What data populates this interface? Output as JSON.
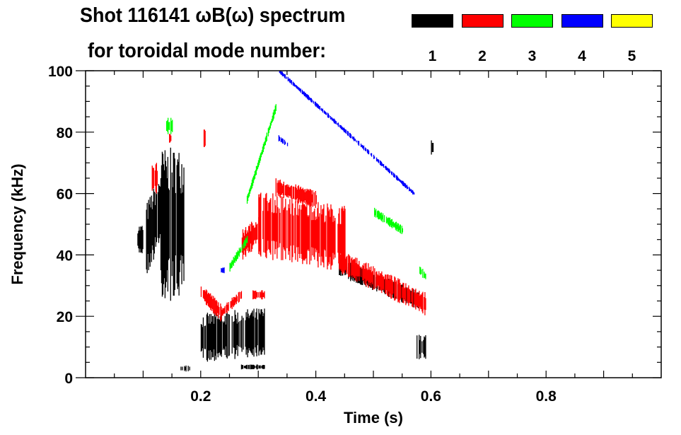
{
  "chart_data": {
    "type": "heatmap",
    "title_line1": "Shot 116141 ωB(ω) spectrum",
    "title_line2": "for toroidal mode number:",
    "xlabel": "Time (s)",
    "ylabel": "Frequency (kHz)",
    "xlim": [
      0,
      1.0
    ],
    "ylim": [
      0,
      100
    ],
    "xticks": [
      0.2,
      0.4,
      0.6,
      0.8
    ],
    "xtick_labels": [
      "0.2",
      "0.4",
      "0.6",
      "0.8"
    ],
    "yticks": [
      0,
      20,
      40,
      60,
      80,
      100
    ],
    "ytick_labels": [
      "0",
      "20",
      "40",
      "60",
      "80",
      "100"
    ],
    "legend": [
      {
        "mode": "1",
        "color": "#000000"
      },
      {
        "mode": "2",
        "color": "#ff0000"
      },
      {
        "mode": "3",
        "color": "#00ff00"
      },
      {
        "mode": "4",
        "color": "#0000ff"
      },
      {
        "mode": "5",
        "color": "#ffff00"
      }
    ],
    "features": [
      [
        1,
        0.09,
        0.1,
        45,
        45,
        5
      ],
      [
        1,
        0.105,
        0.13,
        45,
        55,
        12
      ],
      [
        1,
        0.13,
        0.17,
        50,
        50,
        25
      ],
      [
        1,
        0.2,
        0.31,
        13,
        15,
        8
      ],
      [
        1,
        0.165,
        0.18,
        3,
        3,
        1
      ],
      [
        1,
        0.27,
        0.31,
        3.5,
        3.5,
        0.8
      ],
      [
        1,
        0.44,
        0.58,
        36,
        25,
        3
      ],
      [
        1,
        0.575,
        0.59,
        10,
        10,
        4
      ],
      [
        1,
        0.6,
        0.603,
        75,
        75,
        3
      ],
      [
        2,
        0.115,
        0.125,
        65,
        65,
        5
      ],
      [
        2,
        0.145,
        0.15,
        78,
        78,
        2
      ],
      [
        2,
        0.205,
        0.207,
        78,
        78,
        3
      ],
      [
        2,
        0.2,
        0.235,
        28,
        21,
        3
      ],
      [
        2,
        0.235,
        0.27,
        21,
        27,
        2
      ],
      [
        2,
        0.27,
        0.3,
        43,
        48,
        5
      ],
      [
        2,
        0.3,
        0.45,
        50,
        45,
        11
      ],
      [
        2,
        0.33,
        0.4,
        62,
        58,
        3
      ],
      [
        2,
        0.44,
        0.59,
        38,
        24,
        4
      ],
      [
        2,
        0.29,
        0.31,
        27,
        27,
        1.5
      ],
      [
        3,
        0.14,
        0.15,
        82,
        82,
        3
      ],
      [
        3,
        0.25,
        0.28,
        36,
        45,
        1.5
      ],
      [
        3,
        0.28,
        0.33,
        58,
        88,
        1.5
      ],
      [
        3,
        0.5,
        0.55,
        54,
        48,
        1.5
      ],
      [
        3,
        0.58,
        0.59,
        35,
        33,
        1.5
      ],
      [
        4,
        0.335,
        0.57,
        100,
        60,
        0.8
      ],
      [
        4,
        0.335,
        0.35,
        78,
        76,
        1
      ],
      [
        4,
        0.235,
        0.24,
        35,
        35,
        1
      ]
    ]
  }
}
